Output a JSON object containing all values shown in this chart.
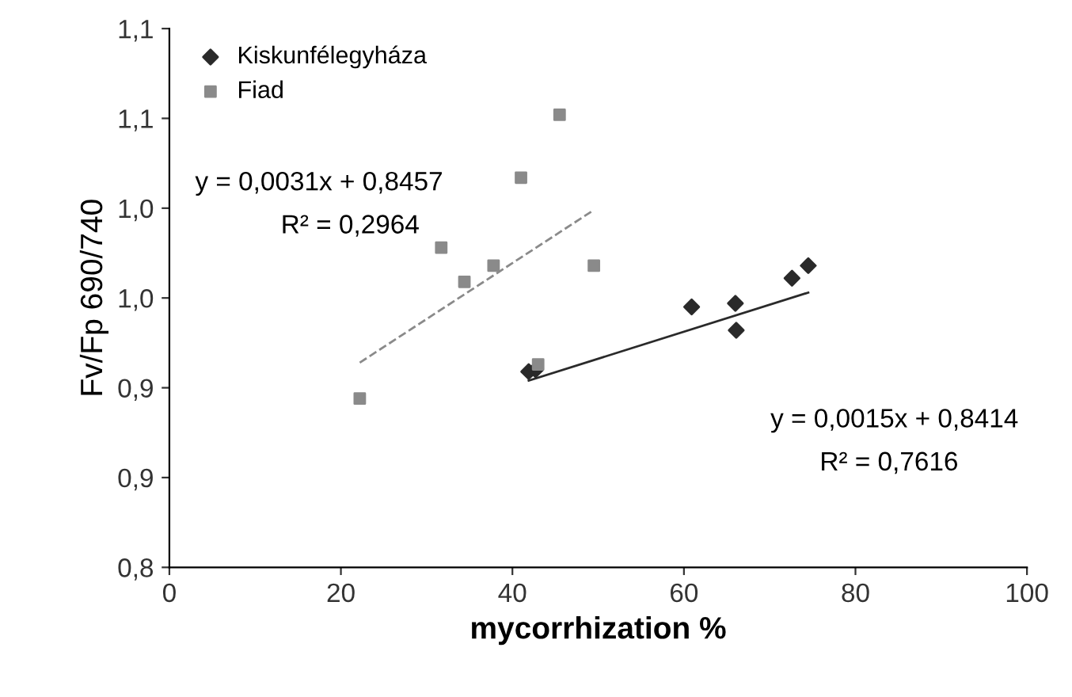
{
  "chart_data": {
    "type": "scatter",
    "xlabel": "mycorrhization %",
    "ylabel": "Fv/Fp 690/740",
    "xlim": [
      0,
      100
    ],
    "xticks": [
      0,
      20,
      40,
      60,
      80,
      100
    ],
    "ylim": [
      0.8,
      1.1
    ],
    "yticks": [
      {
        "value": 0.8,
        "label": "0,8"
      },
      {
        "value": 0.85,
        "label": "0,9"
      },
      {
        "value": 0.9,
        "label": "0,9"
      },
      {
        "value": 0.95,
        "label": "1,0"
      },
      {
        "value": 1.0,
        "label": "1,0"
      },
      {
        "value": 1.05,
        "label": "1,1"
      },
      {
        "value": 1.1,
        "label": "1,1"
      }
    ],
    "grid": false,
    "legend": "top left",
    "series": [
      {
        "name": "Kiskunfélegyháza",
        "marker": "diamond",
        "color": "#2a2a2a",
        "x": [
          41.9,
          42.7,
          60.9,
          66.0,
          66.1,
          72.6,
          74.5
        ],
        "values": [
          0.909,
          0.91,
          0.945,
          0.947,
          0.932,
          0.961,
          0.968
        ]
      },
      {
        "name": "Fiad",
        "marker": "square",
        "color": "#8a8a8a",
        "x": [
          22.2,
          31.7,
          34.4,
          37.8,
          41.0,
          45.5,
          49.5,
          43.0
        ],
        "values": [
          0.894,
          0.978,
          0.959,
          0.968,
          1.017,
          1.052,
          0.968,
          0.913
        ]
      },
      {
        "type": "line",
        "line_style": "dashed",
        "color": "#8a8a8a",
        "x": [
          22.2,
          49.5
        ],
        "values": [
          0.914,
          0.999
        ]
      },
      {
        "type": "line",
        "line_style": "solid",
        "color": "#2a2a2a",
        "x": [
          41.9,
          74.5
        ],
        "values": [
          0.904,
          0.953
        ]
      }
    ],
    "annotations": [
      "y = 0,0031x + 0,8457",
      "R² = 0,2964",
      "y = 0,0015x + 0,8414",
      "R² = 0,7616"
    ]
  }
}
